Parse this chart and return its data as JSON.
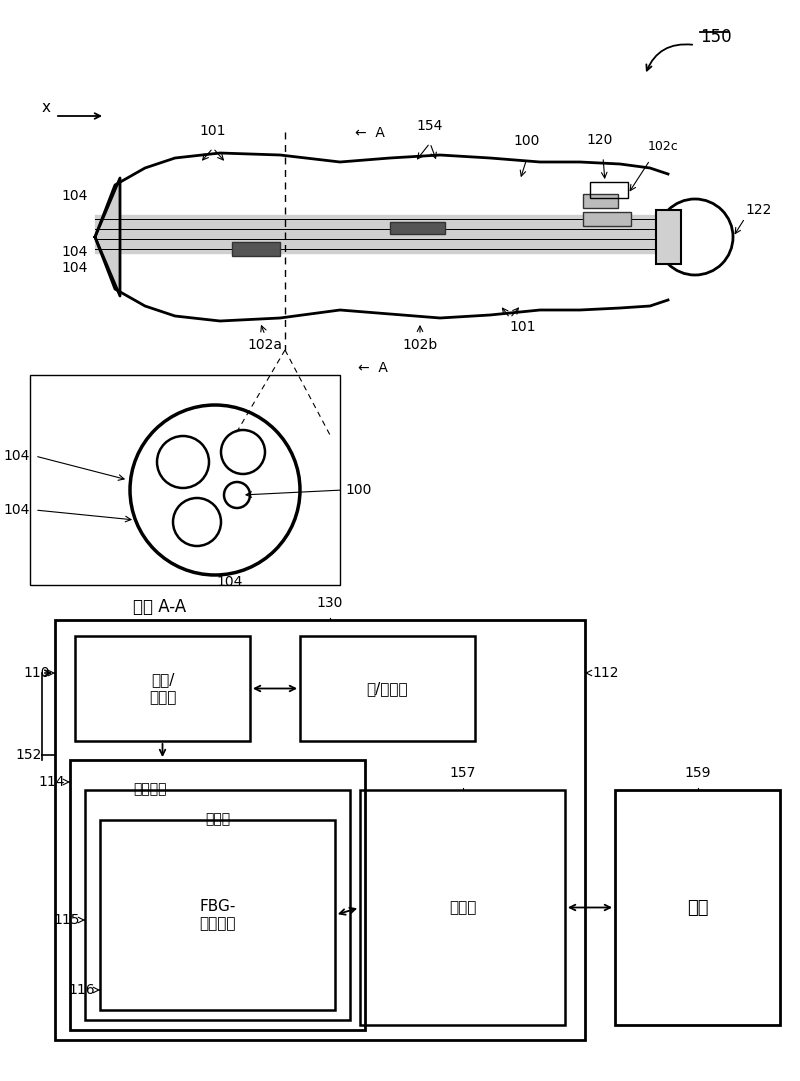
{
  "bg_color": "#ffffff",
  "lc": "#000000",
  "gray": "#888888",
  "lgray": "#cccccc",
  "label_150": "150",
  "label_x": "x",
  "label_100": "100",
  "label_101": "101",
  "label_104": "104",
  "label_102a": "102a",
  "label_102b": "102b",
  "label_102c": "102c",
  "label_120": "120",
  "label_122": "122",
  "label_154": "154",
  "label_section": "截面 A-A",
  "label_110": "110",
  "label_112": "112",
  "label_130": "130",
  "label_114": "114",
  "label_115": "115",
  "label_116": "116",
  "label_152": "152",
  "label_157": "157",
  "label_159": "159",
  "box_guang": "光源/\n接收器",
  "box_yuan": "源/接收器",
  "box_jisuan": "计算设备",
  "box_cunchu": "存储器",
  "box_fbg": "FBG-\n感测程序",
  "box_xianshi": "显示器",
  "box_jiekou": "接口"
}
